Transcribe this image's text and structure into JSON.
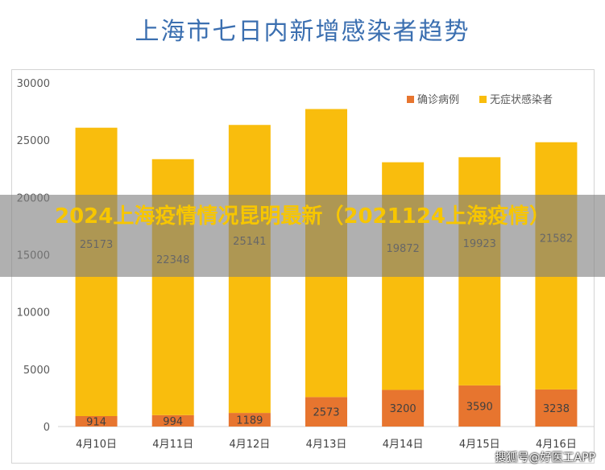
{
  "chart_data": {
    "type": "bar",
    "stacked": true,
    "title": "上海市七日内新增感染者趋势",
    "categories": [
      "4月10日",
      "4月11日",
      "4月12日",
      "4月13日",
      "4月14日",
      "4月15日",
      "4月16日"
    ],
    "series": [
      {
        "name": "确诊病例",
        "color": "#e7752f",
        "values": [
          914,
          994,
          1189,
          2573,
          3200,
          3590,
          3238
        ]
      },
      {
        "name": "无症状感染者",
        "color": "#f9bd0d",
        "values": [
          25173,
          22348,
          25141,
          25146,
          19872,
          19923,
          21582
        ]
      }
    ],
    "data_labels": {
      "确诊病例": [
        "914",
        "994",
        "1189",
        "2573",
        "3200",
        "3590",
        "3238"
      ],
      "无症状感染者": [
        "25173",
        "22348",
        "25141",
        "",
        "19872",
        "19923",
        "21582"
      ]
    },
    "yticks": [
      0,
      5000,
      10000,
      15000,
      20000,
      25000,
      30000
    ],
    "ylim": [
      0,
      30000
    ],
    "legend_position": "top-right",
    "grid": false
  },
  "overlay": {
    "headline": "2024上海疫情情况昆明最新（2021124上海疫情）"
  },
  "watermark": "搜狐号@好医工APP"
}
